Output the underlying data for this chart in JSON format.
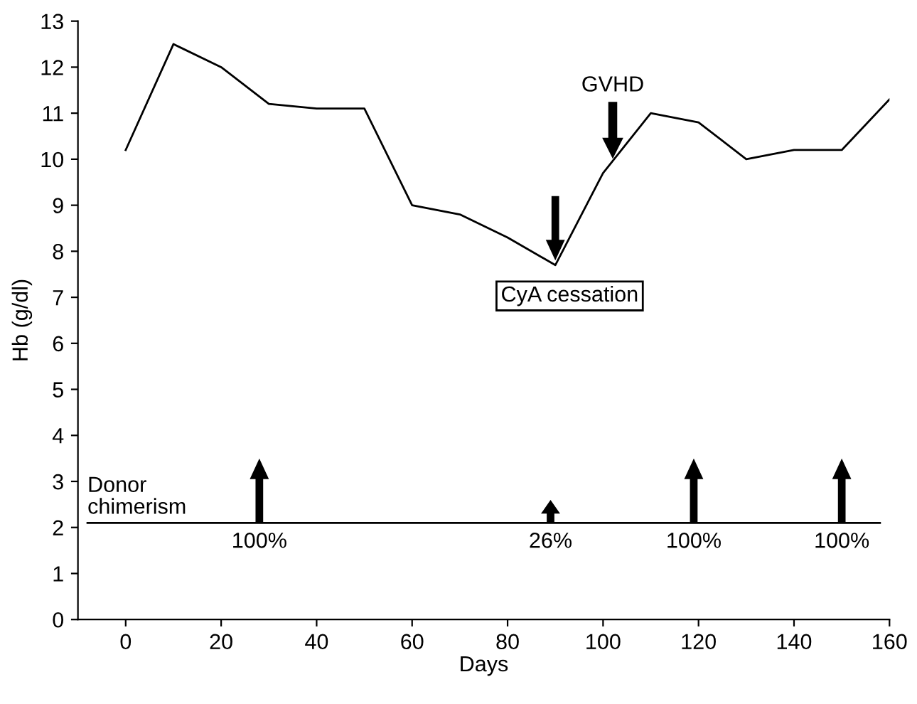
{
  "chart_data": {
    "type": "line",
    "xlabel": "Days",
    "ylabel": "Hb (g/dl)",
    "x": [
      0,
      10,
      20,
      30,
      40,
      50,
      60,
      70,
      80,
      90,
      100,
      110,
      120,
      130,
      140,
      150,
      160
    ],
    "series": [
      {
        "color": "#000000",
        "values": [
          10.2,
          12.5,
          12.0,
          11.2,
          11.1,
          11.1,
          9.0,
          8.8,
          8.3,
          7.7,
          9.7,
          11.0,
          10.8,
          10.0,
          10.2,
          10.2,
          11.3
        ]
      }
    ],
    "xlim": [
      -10,
      160
    ],
    "ylim": [
      0,
      13
    ],
    "xticks": [
      0,
      20,
      40,
      60,
      80,
      100,
      120,
      140,
      160
    ],
    "yticks": [
      0,
      1,
      2,
      3,
      4,
      5,
      6,
      7,
      8,
      9,
      10,
      11,
      12,
      13
    ],
    "grid": false,
    "legend": false,
    "marker": "none",
    "line_style": "solid",
    "ref_lines": [
      {
        "axis": "y",
        "value": 2.1,
        "label": "Donor\nchimerism",
        "color": "#000000"
      }
    ],
    "annotations": [
      "GVHD",
      {
        "text": "CyA cessation",
        "x": 90,
        "y": 7.7
      },
      {
        "text": "100%",
        "x": 28,
        "y": 2.1
      },
      {
        "text": "26%",
        "x": 89,
        "y": 2.1
      },
      {
        "text": "100%",
        "x": 119,
        "y": 2.1
      },
      {
        "text": "100%",
        "x": 150,
        "y": 2.1
      }
    ]
  }
}
